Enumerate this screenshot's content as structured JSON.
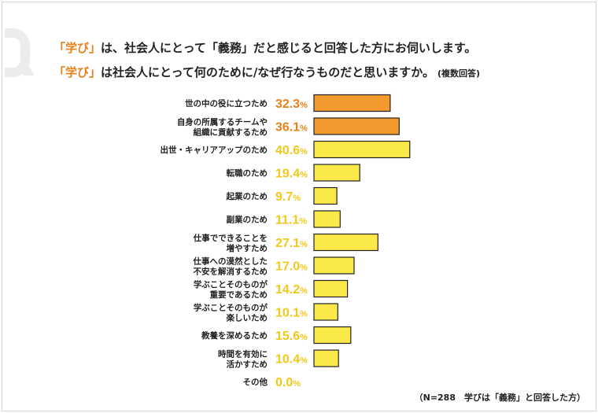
{
  "header": {
    "q_mark_icon": "q-letter-icon",
    "title_line1": {
      "highlight": "「学び」",
      "rest": "は、社会人にとって「義務」だと感じると回答した方にお伺いします。"
    },
    "title_line2": {
      "highlight": "「学び」",
      "rest": "は社会人にとって何のために/なぜ行なうものだと思いますか。",
      "note": "(複数回答)"
    }
  },
  "footnote": "（N=288　学びは「義務」と回答した方）",
  "colors": {
    "accent": "#e8801a",
    "bar_top": "#f29a2e",
    "bar_default": "#fbe94a",
    "value_top": "#e8801a",
    "value_default": "#f2c81a"
  },
  "chart_data": {
    "type": "bar",
    "orientation": "horizontal",
    "categories": [
      [
        "世の中の役に立つため"
      ],
      [
        "自身の所属するチームや",
        "組織に貢献するため"
      ],
      [
        "出世・キャリアアップのため"
      ],
      [
        "転職のため"
      ],
      [
        "起業のため"
      ],
      [
        "副業のため"
      ],
      [
        "仕事でできることを",
        "増やすため"
      ],
      [
        "仕事への漠然とした",
        "不安を解消するため"
      ],
      [
        "学ぶことそのものが",
        "重要であるため"
      ],
      [
        "学ぶことそのものが",
        "楽しいため"
      ],
      [
        "教養を深めるため"
      ],
      [
        "時間を有効に",
        "活かすため"
      ],
      [
        "その他"
      ]
    ],
    "values": [
      32.3,
      36.1,
      40.6,
      19.4,
      9.7,
      11.1,
      27.1,
      17.0,
      14.2,
      10.1,
      15.6,
      10.4,
      0.0
    ],
    "value_labels": [
      "32.3%",
      "36.1%",
      "40.6%",
      "19.4%",
      "9.7%",
      "11.1%",
      "27.1%",
      "17.0%",
      "14.2%",
      "10.1%",
      "15.6%",
      "10.4%",
      "0.0%"
    ],
    "highlighted": [
      true,
      true,
      false,
      false,
      false,
      false,
      false,
      false,
      false,
      false,
      false,
      false,
      false
    ],
    "unit": "%"
  }
}
